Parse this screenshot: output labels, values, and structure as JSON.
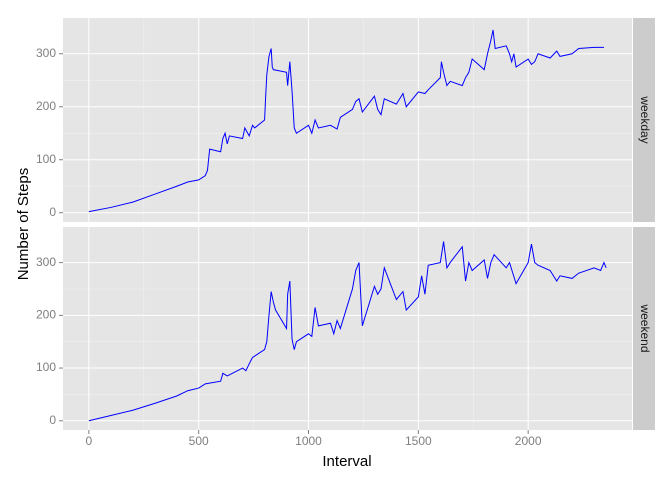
{
  "chart_data": {
    "type": "line",
    "x_label": "Interval",
    "y_label": "Number of Steps",
    "color": "#0000ff",
    "grid": true,
    "xlim": [
      -117.75,
      2472.75
    ],
    "ylim": [
      -17.5,
      367.5
    ],
    "xticks": [
      0,
      500,
      1000,
      1500,
      2000
    ],
    "yticks": [
      0,
      100,
      200,
      300
    ],
    "panels": [
      {
        "strip": "weekday",
        "x": [
          0,
          100,
          200,
          300,
          400,
          450,
          500,
          530,
          540,
          550,
          600,
          610,
          620,
          630,
          640,
          700,
          710,
          730,
          745,
          755,
          800,
          805,
          810,
          820,
          830,
          835,
          840,
          900,
          905,
          915,
          925,
          935,
          945,
          1000,
          1015,
          1030,
          1045,
          1100,
          1130,
          1145,
          1200,
          1215,
          1230,
          1245,
          1300,
          1315,
          1330,
          1345,
          1400,
          1430,
          1445,
          1500,
          1530,
          1545,
          1600,
          1605,
          1615,
          1630,
          1645,
          1700,
          1715,
          1730,
          1745,
          1800,
          1815,
          1830,
          1840,
          1850,
          1900,
          1915,
          1925,
          1935,
          1945,
          2000,
          2015,
          2030,
          2045,
          2100,
          2130,
          2145,
          2200,
          2230,
          2300,
          2345
        ],
        "values": [
          2,
          10,
          20,
          35,
          50,
          58,
          62,
          70,
          80,
          120,
          115,
          140,
          150,
          130,
          145,
          140,
          160,
          145,
          165,
          160,
          175,
          220,
          260,
          295,
          310,
          275,
          270,
          265,
          240,
          285,
          230,
          160,
          150,
          165,
          150,
          175,
          160,
          165,
          158,
          180,
          195,
          210,
          215,
          190,
          220,
          195,
          185,
          215,
          205,
          225,
          200,
          228,
          225,
          232,
          255,
          285,
          265,
          240,
          248,
          240,
          255,
          265,
          290,
          270,
          300,
          325,
          345,
          310,
          315,
          300,
          285,
          300,
          275,
          290,
          280,
          285,
          300,
          292,
          305,
          295,
          300,
          310,
          312,
          312
        ]
      },
      {
        "strip": "weekend",
        "x": [
          0,
          100,
          200,
          300,
          400,
          450,
          500,
          530,
          600,
          610,
          630,
          700,
          715,
          730,
          745,
          800,
          810,
          820,
          830,
          840,
          850,
          900,
          905,
          915,
          925,
          935,
          945,
          1000,
          1015,
          1030,
          1045,
          1100,
          1115,
          1130,
          1145,
          1200,
          1215,
          1230,
          1245,
          1300,
          1315,
          1330,
          1345,
          1400,
          1430,
          1445,
          1500,
          1515,
          1530,
          1545,
          1600,
          1615,
          1630,
          1645,
          1700,
          1715,
          1730,
          1745,
          1800,
          1815,
          1830,
          1845,
          1900,
          1915,
          1930,
          1945,
          2000,
          2015,
          2030,
          2045,
          2100,
          2130,
          2145,
          2200,
          2230,
          2300,
          2330,
          2345,
          2355
        ],
        "values": [
          0,
          10,
          20,
          33,
          47,
          57,
          62,
          70,
          75,
          90,
          85,
          100,
          95,
          108,
          120,
          135,
          150,
          200,
          245,
          225,
          210,
          175,
          240,
          265,
          155,
          135,
          150,
          165,
          160,
          215,
          180,
          185,
          165,
          190,
          175,
          250,
          285,
          300,
          180,
          255,
          240,
          250,
          290,
          230,
          245,
          210,
          235,
          275,
          240,
          295,
          300,
          340,
          290,
          300,
          330,
          265,
          300,
          285,
          305,
          270,
          300,
          315,
          290,
          300,
          280,
          260,
          300,
          335,
          300,
          295,
          285,
          265,
          275,
          270,
          280,
          290,
          285,
          300,
          290
        ]
      }
    ]
  }
}
